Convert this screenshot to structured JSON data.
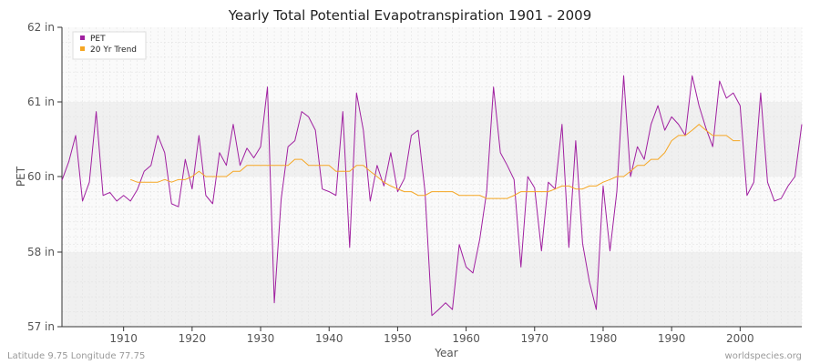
{
  "chart_data": {
    "type": "line",
    "title": "Yearly Total Potential Evapotranspiration 1901 - 2009",
    "xlabel": "Year",
    "ylabel": "PET",
    "xlim": [
      1901,
      2009
    ],
    "ylim": [
      57,
      62
    ],
    "x_ticks": [
      1910,
      1920,
      1930,
      1940,
      1950,
      1960,
      1970,
      1980,
      1990,
      2000
    ],
    "y_ticks": [
      {
        "value": 57,
        "label": "57 in"
      },
      {
        "value": 58,
        "label": "58 in"
      },
      {
        "value": 60,
        "label": "60 in"
      },
      {
        "value": 61,
        "label": "61 in"
      },
      {
        "value": 62,
        "label": "62 in"
      }
    ],
    "grid": true,
    "legend_position": "top-left",
    "series": [
      {
        "name": "PET",
        "color": "#a020a0",
        "x_start": 1901,
        "values": [
          59.9,
          60.2,
          60.55,
          59.35,
          59.85,
          60.87,
          59.5,
          59.58,
          59.35,
          59.5,
          59.35,
          59.65,
          60.07,
          60.15,
          60.55,
          60.32,
          59.28,
          59.2,
          60.23,
          59.67,
          60.55,
          59.5,
          59.28,
          60.32,
          60.15,
          60.7,
          60.15,
          60.38,
          60.25,
          60.4,
          61.2,
          57.32,
          59.4,
          60.4,
          60.48,
          60.87,
          60.8,
          60.62,
          59.67,
          59.6,
          59.5,
          60.87,
          58.12,
          61.12,
          60.62,
          59.35,
          60.15,
          59.75,
          60.32,
          59.6,
          59.95,
          60.55,
          60.62,
          59.6,
          57.15,
          57.23,
          57.32,
          57.23,
          58.2,
          57.8,
          57.72,
          58.35,
          59.6,
          61.2,
          60.32,
          60.15,
          59.92,
          57.8,
          60.0,
          59.7,
          58.03,
          59.85,
          59.67,
          60.7,
          58.12,
          60.48,
          58.23,
          57.6,
          57.23,
          59.75,
          58.03,
          59.6,
          61.35,
          60.0,
          60.4,
          60.23,
          60.7,
          60.95,
          60.62,
          60.8,
          60.7,
          60.55,
          61.35,
          60.95,
          60.65,
          60.4,
          61.28,
          61.05,
          61.12,
          60.95,
          59.5,
          59.85,
          61.12,
          59.85,
          59.35,
          59.42,
          59.75,
          60.0,
          60.7
        ]
      },
      {
        "name": "20 Yr Trend",
        "color": "#f5a623",
        "x_start": 1911,
        "values": [
          59.92,
          59.85,
          59.85,
          59.85,
          59.85,
          59.92,
          59.85,
          59.92,
          59.92,
          60.0,
          60.07,
          60.0,
          60.0,
          60.0,
          60.0,
          60.07,
          60.07,
          60.15,
          60.15,
          60.15,
          60.15,
          60.15,
          60.15,
          60.15,
          60.23,
          60.23,
          60.15,
          60.15,
          60.15,
          60.15,
          60.07,
          60.07,
          60.07,
          60.15,
          60.15,
          60.07,
          60.0,
          59.85,
          59.75,
          59.67,
          59.6,
          59.6,
          59.5,
          59.5,
          59.6,
          59.6,
          59.6,
          59.6,
          59.5,
          59.5,
          59.5,
          59.5,
          59.42,
          59.42,
          59.42,
          59.42,
          59.5,
          59.6,
          59.6,
          59.6,
          59.6,
          59.6,
          59.67,
          59.75,
          59.75,
          59.67,
          59.67,
          59.75,
          59.75,
          59.85,
          59.92,
          60.0,
          60.0,
          60.07,
          60.15,
          60.15,
          60.23,
          60.23,
          60.32,
          60.48,
          60.55,
          60.55,
          60.62,
          60.7,
          60.62,
          60.55,
          60.55,
          60.55,
          60.48,
          60.48
        ]
      }
    ]
  },
  "footer": {
    "left": "Latitude 9.75 Longitude 77.75",
    "right": "worldspecies.org"
  }
}
